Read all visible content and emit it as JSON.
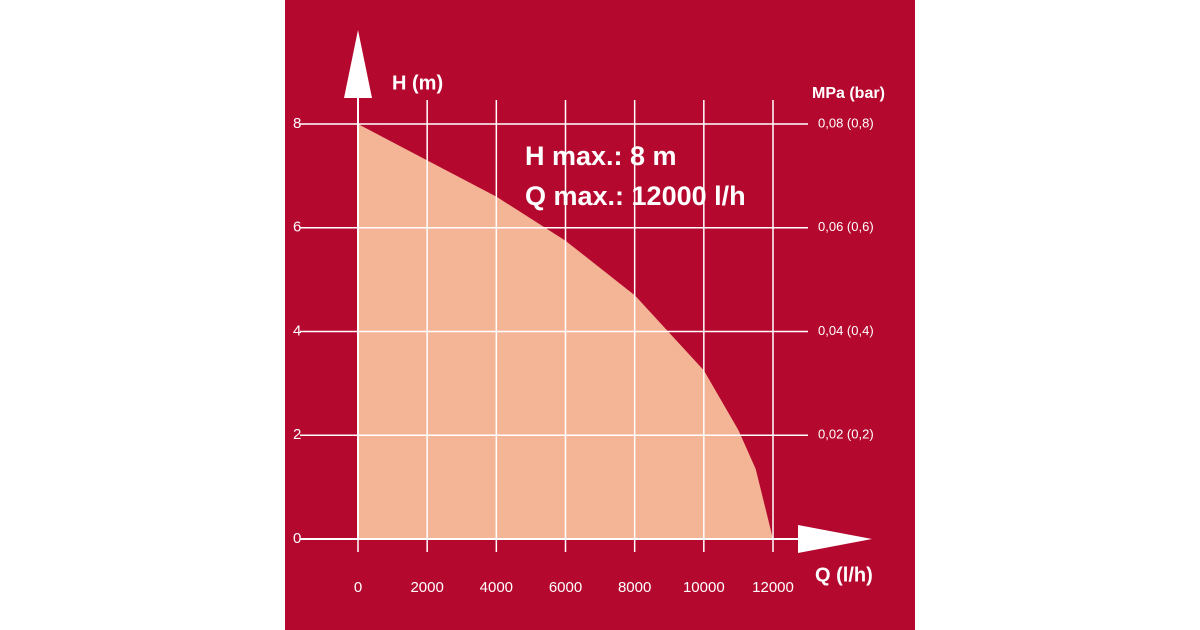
{
  "chart_data": {
    "type": "area",
    "x": [
      0,
      2000,
      4000,
      6000,
      8000,
      10000,
      11000,
      11500,
      12000
    ],
    "series": [
      {
        "color": "#f4b496",
        "values": [
          8,
          7.3,
          6.6,
          5.75,
          4.7,
          3.25,
          2.1,
          1.35,
          0
        ]
      }
    ],
    "xlim": [
      0,
      12000
    ],
    "xticks": [
      0,
      2000,
      4000,
      6000,
      8000,
      10000,
      12000
    ],
    "ylim": [
      0,
      8
    ],
    "yticks": [
      0,
      2,
      4,
      6,
      8
    ],
    "y2lim": [
      0,
      0.08
    ],
    "y2ticks": [
      {
        "value": 0.02,
        "label": "0,02 (0,2)"
      },
      {
        "value": 0.04,
        "label": "0,04 (0,4)"
      },
      {
        "value": 0.06,
        "label": "0,06 (0,6)"
      },
      {
        "value": 0.08,
        "label": "0,08 (0,8)"
      }
    ],
    "ylabel": "H (m)",
    "xlabel": "Q (l/h)",
    "y2label": "MPa (bar)",
    "annotations": [
      "H max.:  8 m",
      "Q max.:  12000 l/h"
    ],
    "grid": true,
    "background": "#b5082e",
    "grid_color": "#ffffff"
  }
}
